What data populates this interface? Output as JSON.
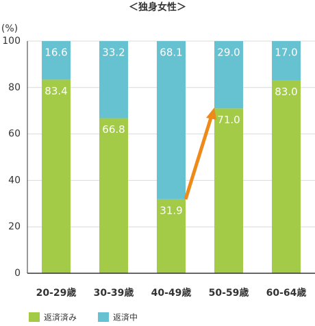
{
  "chart_data": {
    "type": "stacked-bar",
    "title": "＜独身女性＞",
    "y_label": "(%)",
    "categories": [
      "20-29歳",
      "30-39歳",
      "40-49歳",
      "50-59歳",
      "60-64歳"
    ],
    "series": [
      {
        "name": "返済済み",
        "color": "#a3cb48",
        "values": [
          83.4,
          66.8,
          31.9,
          71.0,
          83.0
        ],
        "value_labels": [
          "83.4",
          "66.8",
          "31.9",
          "71.0",
          "83.0"
        ]
      },
      {
        "name": "返済中",
        "color": "#66c1d1",
        "values": [
          16.6,
          33.2,
          68.1,
          29.0,
          17.0
        ],
        "value_labels": [
          "16.6",
          "33.2",
          "68.1",
          "29.0",
          "17.0"
        ]
      }
    ],
    "ylim": [
      0,
      100
    ],
    "yticks": [
      0,
      20,
      40,
      60,
      80,
      100
    ],
    "grid": true
  }
}
